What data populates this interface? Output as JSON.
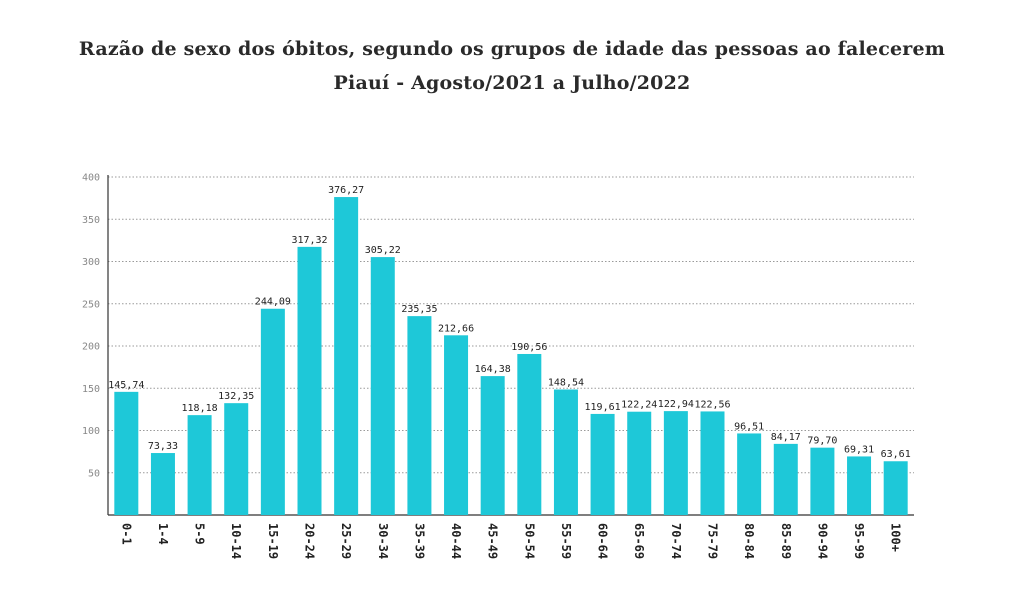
{
  "chart_data": {
    "type": "bar",
    "title": "Razão de sexo dos óbitos, segundo os grupos de idade das pessoas ao falecerem",
    "subtitle": "Piauí - Agosto/2021 a Julho/2022",
    "xlabel": "",
    "ylabel": "",
    "ylim": [
      0,
      400
    ],
    "yticks": [
      50,
      100,
      150,
      200,
      250,
      300,
      350,
      400
    ],
    "grid": true,
    "bar_color": "#1ec8d8",
    "categories": [
      "0-1",
      "1-4",
      "5-9",
      "10-14",
      "15-19",
      "20-24",
      "25-29",
      "30-34",
      "35-39",
      "40-44",
      "45-49",
      "50-54",
      "55-59",
      "60-64",
      "65-69",
      "70-74",
      "75-79",
      "80-84",
      "85-89",
      "90-94",
      "95-99",
      "100+"
    ],
    "values": [
      145.74,
      73.33,
      118.18,
      132.35,
      244.09,
      317.32,
      376.27,
      305.22,
      235.35,
      212.66,
      164.38,
      190.56,
      148.54,
      119.61,
      122.24,
      122.94,
      122.56,
      96.51,
      84.17,
      79.7,
      69.31,
      63.61
    ],
    "value_labels": [
      "145,74",
      "73,33",
      "118,18",
      "132,35",
      "244,09",
      "317,32",
      "376,27",
      "305,22",
      "235,35",
      "212,66",
      "164,38",
      "190,56",
      "148,54",
      "119,61",
      "122,24",
      "122,94",
      "122,56",
      "96,51",
      "84,17",
      "79,70",
      "69,31",
      "63,61"
    ]
  }
}
